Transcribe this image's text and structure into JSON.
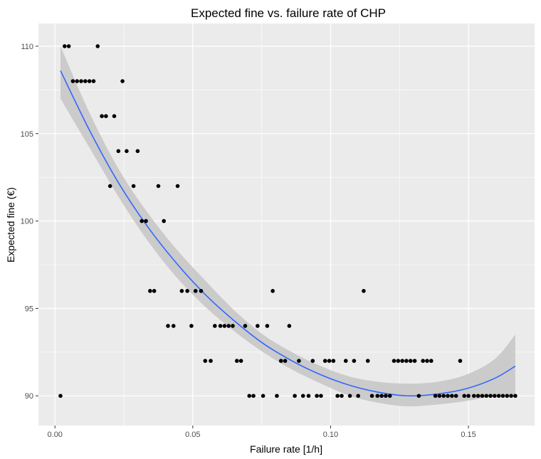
{
  "chart_data": {
    "type": "scatter",
    "title": "Expected fine vs. failure rate of CHP",
    "xlabel": "Failure rate [1/h]",
    "ylabel": "Expected fine (€)",
    "xlim": [
      -0.006,
      0.174
    ],
    "ylim": [
      88.3,
      111.3
    ],
    "x_ticks": [
      0.0,
      0.05,
      0.1,
      0.15
    ],
    "x_tick_labels": [
      "0.00",
      "0.05",
      "0.10",
      "0.15"
    ],
    "y_ticks": [
      90,
      95,
      100,
      105,
      110
    ],
    "y_tick_labels": [
      "90",
      "95",
      "100",
      "105",
      "110"
    ],
    "grid": true,
    "legend": "none",
    "colors": {
      "panel": "#ebebeb",
      "grid_major": "#ffffff",
      "points": "#000000",
      "fit_line": "#3366ff",
      "ribbon": "#c8c8c8"
    },
    "points": {
      "x": [
        0.002,
        0.0035,
        0.005,
        0.0065,
        0.008,
        0.0095,
        0.011,
        0.0125,
        0.014,
        0.0155,
        0.017,
        0.0185,
        0.02,
        0.0215,
        0.023,
        0.0245,
        0.026,
        0.0285,
        0.03,
        0.0315,
        0.033,
        0.0345,
        0.036,
        0.0375,
        0.0395,
        0.041,
        0.043,
        0.0445,
        0.046,
        0.048,
        0.0495,
        0.051,
        0.053,
        0.0545,
        0.0565,
        0.058,
        0.06,
        0.0615,
        0.063,
        0.0645,
        0.066,
        0.0675,
        0.069,
        0.0705,
        0.072,
        0.0735,
        0.0755,
        0.077,
        0.079,
        0.0805,
        0.082,
        0.0835,
        0.085,
        0.087,
        0.0885,
        0.09,
        0.092,
        0.0935,
        0.095,
        0.0965,
        0.098,
        0.0995,
        0.101,
        0.1025,
        0.104,
        0.1055,
        0.107,
        0.1085,
        0.11,
        0.112,
        0.1135,
        0.115,
        0.117,
        0.1185,
        0.12,
        0.1215,
        0.123,
        0.1245,
        0.126,
        0.1275,
        0.129,
        0.1305,
        0.132,
        0.1335,
        0.135,
        0.1365,
        0.138,
        0.1395,
        0.141,
        0.1425,
        0.144,
        0.1455,
        0.147,
        0.1485,
        0.15,
        0.152,
        0.1535,
        0.155,
        0.1565,
        0.158,
        0.1595,
        0.161,
        0.1625,
        0.164,
        0.1655,
        0.167
      ],
      "y": [
        90,
        110,
        110,
        108,
        108,
        108,
        108,
        108,
        108,
        110,
        106,
        106,
        102,
        106,
        104,
        108,
        104,
        102,
        104,
        100,
        100,
        96,
        96,
        102,
        100,
        94,
        94,
        102,
        96,
        96,
        94,
        96,
        96,
        92,
        92,
        94,
        94,
        94,
        94,
        94,
        92,
        92,
        94,
        90,
        90,
        94,
        90,
        94,
        96,
        90,
        92,
        92,
        94,
        90,
        92,
        90,
        90,
        92,
        90,
        90,
        92,
        92,
        92,
        90,
        90,
        92,
        90,
        92,
        90,
        96,
        92,
        90,
        90,
        90,
        90,
        90,
        92,
        92,
        92,
        92,
        92,
        92,
        90,
        92,
        92,
        92,
        90,
        90,
        90,
        90,
        90,
        90,
        92,
        90,
        90,
        90,
        90,
        90,
        90,
        90,
        90,
        90,
        90,
        90,
        90,
        90
      ]
    },
    "fit": {
      "x": [
        0.002,
        0.0125,
        0.023,
        0.0335,
        0.044,
        0.0545,
        0.065,
        0.0755,
        0.086,
        0.0965,
        0.107,
        0.1175,
        0.128,
        0.1385,
        0.149,
        0.1595,
        0.167
      ],
      "y": [
        108.6,
        105.2,
        102.2,
        99.7,
        97.6,
        95.8,
        94.3,
        93.0,
        92.0,
        91.2,
        90.6,
        90.2,
        90.0,
        90.1,
        90.4,
        91.0,
        91.7
      ],
      "lower": [
        107.0,
        104.2,
        101.4,
        98.9,
        96.8,
        95.1,
        93.7,
        92.5,
        91.5,
        90.7,
        90.0,
        89.6,
        89.4,
        89.5,
        89.7,
        90.0,
        90.1
      ],
      "upper": [
        110.0,
        106.2,
        103.0,
        100.5,
        98.4,
        96.6,
        94.9,
        93.5,
        92.5,
        91.7,
        91.1,
        90.8,
        90.7,
        90.8,
        91.2,
        92.1,
        93.5
      ]
    }
  }
}
